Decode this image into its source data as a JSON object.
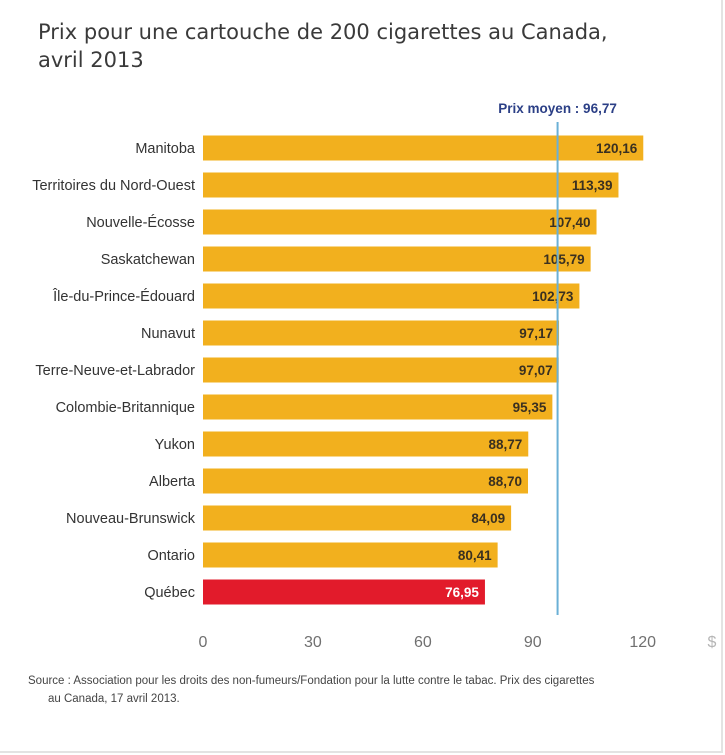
{
  "chart_data": {
    "type": "bar",
    "orientation": "horizontal",
    "title": "Prix pour une cartouche de 200 cigarettes au Canada, avril 2013",
    "categories": [
      "Manitoba",
      "Territoires du Nord-Ouest",
      "Nouvelle-Écosse",
      "Saskatchewan",
      "Île-du-Prince-Édouard",
      "Nunavut",
      "Terre-Neuve-et-Labrador",
      "Colombie-Britannique",
      "Yukon",
      "Alberta",
      "Nouveau-Brunswick",
      "Ontario",
      "Québec"
    ],
    "values": [
      120.16,
      113.39,
      107.4,
      105.79,
      102.73,
      97.17,
      97.07,
      95.35,
      88.77,
      88.7,
      84.09,
      80.41,
      76.95
    ],
    "value_labels": [
      "120,16",
      "113,39",
      "107,40",
      "105,79",
      "102,73",
      "97,17",
      "97,07",
      "95,35",
      "88,77",
      "88,70",
      "84,09",
      "80,41",
      "76,95"
    ],
    "highlight_category": "Québec",
    "xlim": [
      0,
      128
    ],
    "xticks": [
      0,
      30,
      60,
      90,
      120
    ],
    "x_unit": "$",
    "reference_line": {
      "label": "Prix moyen : 96,77",
      "value": 96.77
    },
    "grid": false,
    "colors": {
      "bar": "#f2b01e",
      "bar_highlight": "#e21b2b",
      "reference_line": "#6ab0d6",
      "reference_label": "#2b3f86",
      "value_label": "#3a3020",
      "value_label_highlight": "#ffffff",
      "tick_label": "#707070",
      "category_label": "#333333"
    }
  },
  "header": {
    "title_line1": "Prix pour une cartouche de 200 cigarettes au Canada,",
    "title_line2": "avril 2013"
  },
  "footer": {
    "source_line1": "Source : Association pour les droits des non-fumeurs/Fondation pour la lutte contre le tabac. Prix des cigarettes",
    "source_line2": "au Canada, 17 avril 2013."
  }
}
